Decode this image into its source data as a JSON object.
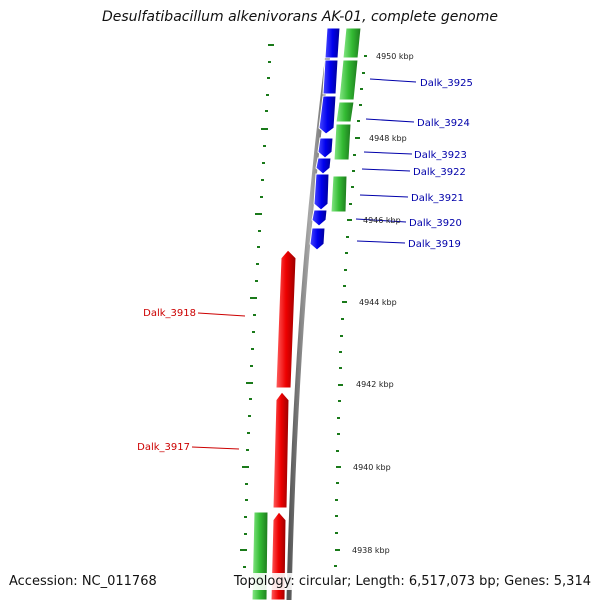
{
  "title": "Desulfatibacillum alkenivorans AK-01, complete genome",
  "footer": {
    "accession": "Accession: NC_011768",
    "summary": "Topology: circular; Length: 6,517,073 bp; Genes: 5,314"
  },
  "colors": {
    "forward_cds": "#0a0aee",
    "reverse_cds": "#ee1111",
    "gene_feature": "#33bb33",
    "backbone": "#888888",
    "ticks": "#1a7a1a",
    "label_forward": "#0000aa",
    "label_reverse": "#cc0000"
  },
  "scale_labels": [
    "4950 kbp",
    "4948 kbp",
    "4946 kbp",
    "4944 kbp",
    "4942 kbp",
    "4940 kbp",
    "4938 kbp"
  ],
  "genes_forward": [
    "Dalk_3925",
    "Dalk_3924",
    "Dalk_3923",
    "Dalk_3922",
    "Dalk_3921",
    "Dalk_3920",
    "Dalk_3919"
  ],
  "genes_reverse": [
    "Dalk_3918",
    "Dalk_3917"
  ]
}
